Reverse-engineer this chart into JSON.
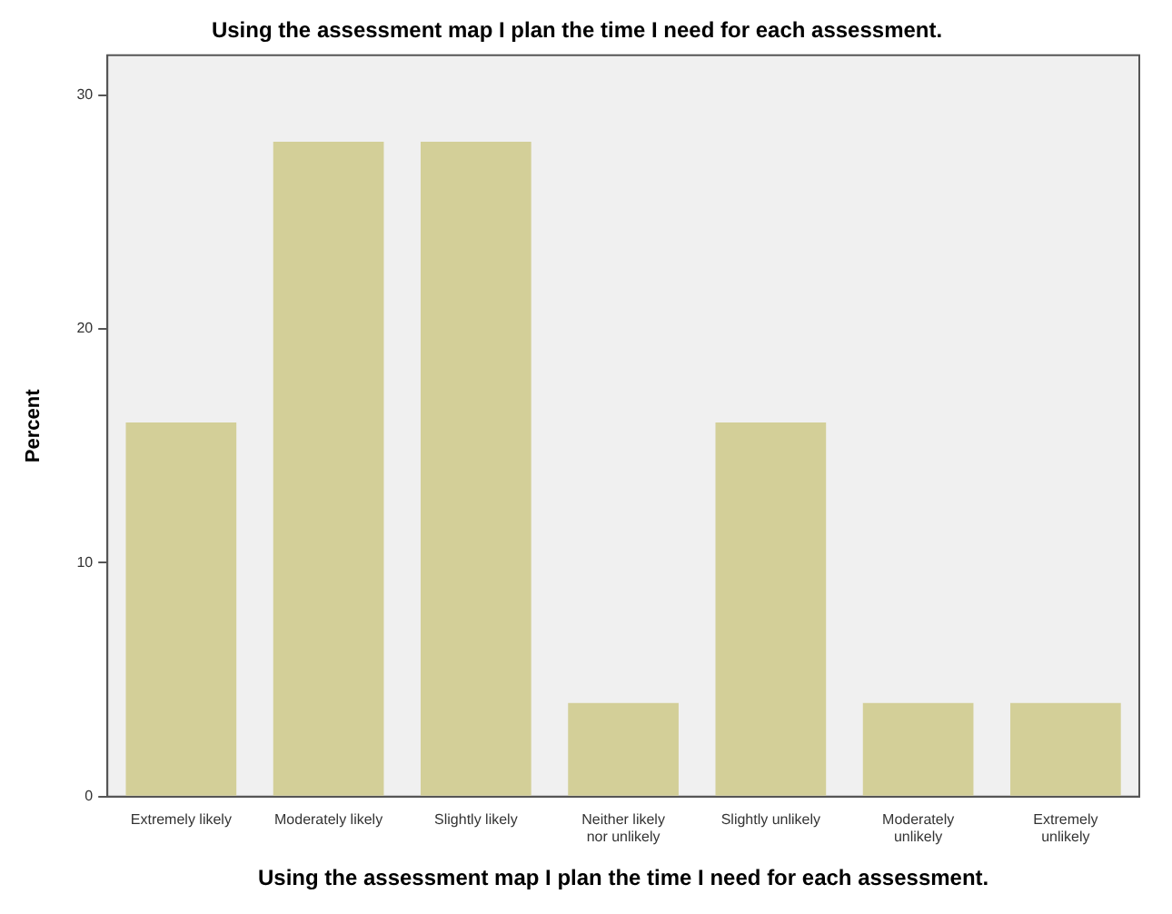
{
  "chart_data": {
    "type": "bar",
    "title": "Using the assessment map I plan the time I need for each assessment.",
    "xlabel": "Using the assessment map I plan the time I need for each assessment.",
    "ylabel": "Percent",
    "categories": [
      "Extremely likely",
      "Moderately likely",
      "Slightly likely",
      "Neither likely nor unlikely",
      "Slightly unlikely",
      "Moderately unlikely",
      "Extremely unlikely"
    ],
    "values": [
      16,
      28,
      28,
      4,
      16,
      4,
      4
    ],
    "color": "#d3cf98",
    "ylim": [
      0,
      31.7
    ],
    "yticks": [
      0,
      10,
      20,
      30
    ],
    "grid": false,
    "legend": false
  }
}
